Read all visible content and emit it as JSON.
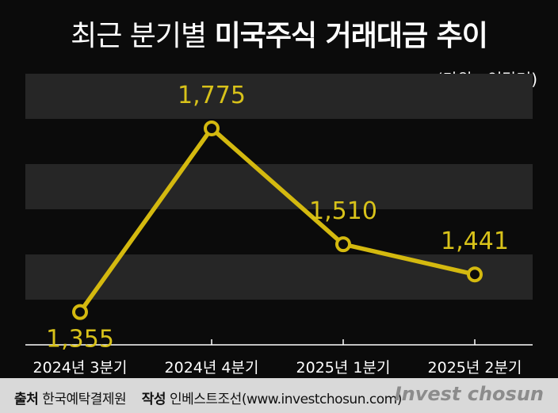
{
  "title": {
    "part1": "최근 분기별",
    "part2": "미국주식 거래대금 추이"
  },
  "unit": "(단위 : 억달러)",
  "colors": {
    "background": "#0b0b0b",
    "band": "#262626",
    "line": "#d4b90f",
    "value_label": "#d8c21a",
    "text": "#ffffff",
    "footer_bg": "#d9d9d9"
  },
  "chart_data": {
    "type": "line",
    "title": "최근 분기별 미국주식 거래대금 추이",
    "categories": [
      "2024년 3분기",
      "2024년 4분기",
      "2025년 1분기",
      "2025년 2분기"
    ],
    "series": [
      {
        "values": [
          1355,
          1775,
          1510,
          1441
        ]
      }
    ],
    "data_labels": [
      "1,355",
      "1,775",
      "1,510",
      "1,441"
    ],
    "xlabel": "",
    "ylabel": "억달러",
    "ylim": [
      1280,
      1900
    ],
    "grid": "alternating horizontal bands"
  },
  "footer": {
    "source_label": "출처",
    "source": "한국예탁결제원",
    "author_label": "작성",
    "author": "인베스트조선(www.investchosun.com)",
    "brand": "Invest chosun"
  }
}
